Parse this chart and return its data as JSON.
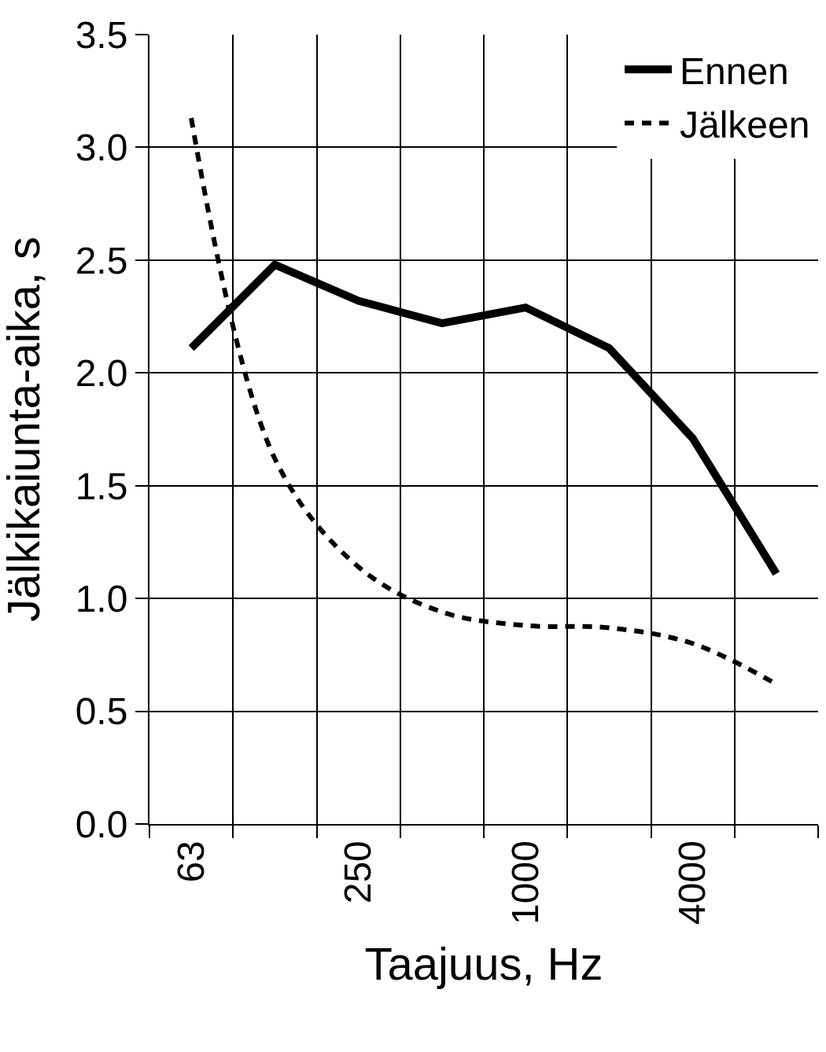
{
  "chart_data": {
    "type": "line",
    "xlabel": "Taajuus, Hz",
    "ylabel": "Jälkikaiunta-aika, s",
    "categories": [
      "63",
      null,
      "250",
      null,
      "1000",
      null,
      "4000",
      null
    ],
    "series": [
      {
        "name": "Ennen",
        "color": "#000000",
        "line_style": "solid",
        "values": [
          2.11,
          2.48,
          2.32,
          2.22,
          2.29,
          2.11,
          1.71,
          1.11
        ]
      },
      {
        "name": "Jälkeen",
        "color": "#000000",
        "line_style": "dashed",
        "values": [
          3.13,
          1.62,
          1.14,
          0.94,
          0.88,
          0.87,
          0.8,
          0.62
        ]
      }
    ],
    "ylim": [
      0,
      3.5
    ],
    "yticks": [
      {
        "value": 0,
        "label": "0.0"
      },
      {
        "value": 0.5,
        "label": "0.5"
      },
      {
        "value": 1,
        "label": "1.0"
      },
      {
        "value": 1.5,
        "label": "1.5"
      },
      {
        "value": 2,
        "label": "2.0"
      },
      {
        "value": 2.5,
        "label": "2.5"
      },
      {
        "value": 3,
        "label": "3.0"
      },
      {
        "value": 3.5,
        "label": "3.5"
      }
    ],
    "grid": true,
    "legend": "top right",
    "marker": "none"
  }
}
